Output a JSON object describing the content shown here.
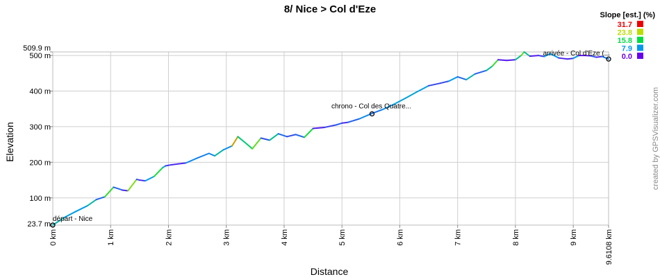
{
  "chart_data": {
    "type": "line",
    "title": "8/ Nice > Col d'Eze",
    "xlabel": "Distance",
    "ylabel": "Elevation",
    "xlim": [
      0,
      9.6108
    ],
    "ylim": [
      23.7,
      509.9
    ],
    "grid": true,
    "x_ticks": [
      {
        "value": 0,
        "label": "0 km"
      },
      {
        "value": 1,
        "label": "1 km"
      },
      {
        "value": 2,
        "label": "2 km"
      },
      {
        "value": 3,
        "label": "3 km"
      },
      {
        "value": 4,
        "label": "4 km"
      },
      {
        "value": 5,
        "label": "5 km"
      },
      {
        "value": 6,
        "label": "6 km"
      },
      {
        "value": 7,
        "label": "7 km"
      },
      {
        "value": 8,
        "label": "8 km"
      },
      {
        "value": 9,
        "label": "9 km"
      },
      {
        "value": 9.6108,
        "label": "9.6108 km"
      }
    ],
    "y_ticks": [
      {
        "value": 23.7,
        "label": "23.7 m"
      },
      {
        "value": 100,
        "label": "100 m"
      },
      {
        "value": 200,
        "label": "200 m"
      },
      {
        "value": 300,
        "label": "300 m"
      },
      {
        "value": 400,
        "label": "400 m"
      },
      {
        "value": 500,
        "label": "500 m"
      },
      {
        "value": 509.9,
        "label": "509.9 m"
      }
    ],
    "legend": {
      "title": "Slope [est.] (%)",
      "position": "top-right",
      "entries": [
        {
          "label": "31.7",
          "color": "#ee0000"
        },
        {
          "label": "23.8",
          "color": "#bbdd00"
        },
        {
          "label": "15.8",
          "color": "#00dd44"
        },
        {
          "label": "7.9",
          "color": "#0099ee"
        },
        {
          "label": "0.0",
          "color": "#6600ee"
        }
      ]
    },
    "waypoints": [
      {
        "x": 0,
        "y": 23.7,
        "label": "départ - Nice"
      },
      {
        "x": 5.52,
        "y": 336,
        "label": "chrono - Col des Quatre..."
      },
      {
        "x": 9.6108,
        "y": 490,
        "label": "arrivée - Col d'Eze (..."
      }
    ],
    "x": [
      0,
      0.2,
      0.4,
      0.6,
      0.75,
      0.9,
      1.05,
      1.15,
      1.2,
      1.3,
      1.45,
      1.5,
      1.6,
      1.75,
      1.9,
      1.95,
      2.05,
      2.3,
      2.5,
      2.7,
      2.8,
      2.95,
      3.1,
      3.2,
      3.35,
      3.45,
      3.6,
      3.75,
      3.9,
      4.05,
      4.2,
      4.35,
      4.5,
      4.7,
      4.9,
      5.0,
      5.1,
      5.3,
      5.5,
      5.7,
      5.9,
      6.1,
      6.3,
      6.5,
      6.7,
      6.85,
      7.0,
      7.15,
      7.3,
      7.5,
      7.6,
      7.7,
      7.85,
      8.0,
      8.1,
      8.15,
      8.25,
      8.4,
      8.5,
      8.6,
      8.75,
      8.9,
      9.0,
      9.1,
      9.2,
      9.3,
      9.4,
      9.5,
      9.6108
    ],
    "y": [
      23.7,
      45,
      62,
      78,
      95,
      103,
      130,
      125,
      122,
      120,
      152,
      150,
      148,
      160,
      185,
      190,
      193,
      198,
      212,
      225,
      218,
      235,
      246,
      272,
      252,
      238,
      268,
      262,
      280,
      272,
      278,
      270,
      295,
      298,
      305,
      310,
      312,
      322,
      336,
      348,
      363,
      380,
      398,
      415,
      422,
      428,
      440,
      432,
      448,
      458,
      470,
      488,
      486,
      488,
      500,
      509.9,
      498,
      500,
      497,
      505,
      493,
      490,
      492,
      500,
      500,
      499,
      495,
      497,
      490
    ],
    "slopes": [
      10.7,
      8.5,
      8,
      11.3,
      5.3,
      18,
      5,
      6,
      2,
      21.3,
      4,
      2,
      8,
      16.7,
      10,
      3,
      2,
      7,
      6.5,
      7,
      11.3,
      7.3,
      26,
      13.3,
      14,
      20,
      4,
      12,
      5.3,
      4,
      5.3,
      16.7,
      1.5,
      3.5,
      5,
      2,
      5,
      7,
      6,
      7.5,
      8.5,
      9,
      8.5,
      3.5,
      4,
      8,
      5.3,
      10.7,
      5,
      12,
      18,
      1.3,
      1.3,
      12,
      19.8,
      11.9,
      1.3,
      3,
      8,
      8,
      2,
      2,
      8,
      0.5,
      1,
      4,
      2,
      6.3
    ]
  },
  "watermark": "created by GPSVisualizer.com"
}
